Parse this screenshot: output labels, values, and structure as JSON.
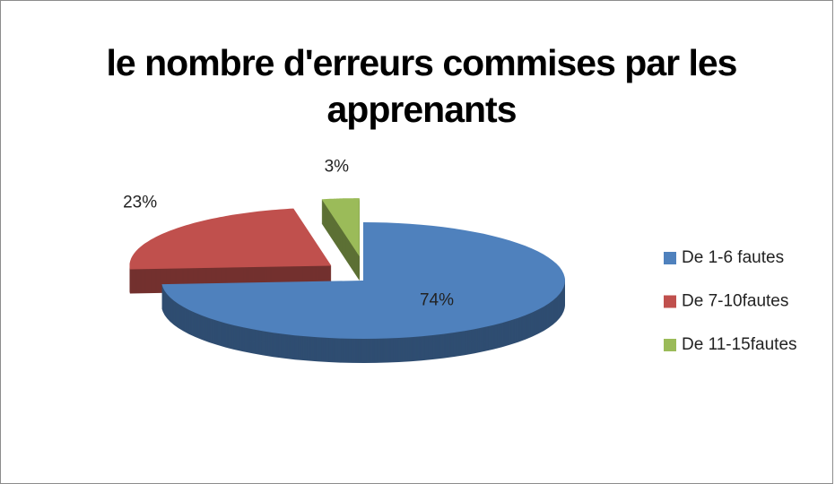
{
  "chart_data": {
    "type": "pie3d",
    "title": "le nombre d'erreurs commises par les apprenants",
    "categories": [
      "De 1-6 fautes",
      "De 7-10fautes",
      "De 11-15fautes"
    ],
    "values": [
      74,
      23,
      3
    ],
    "value_labels": [
      "74%",
      "23%",
      "3%"
    ],
    "colors": [
      "#4f81bd",
      "#c0504d",
      "#9bbb59"
    ],
    "legend": "right"
  }
}
